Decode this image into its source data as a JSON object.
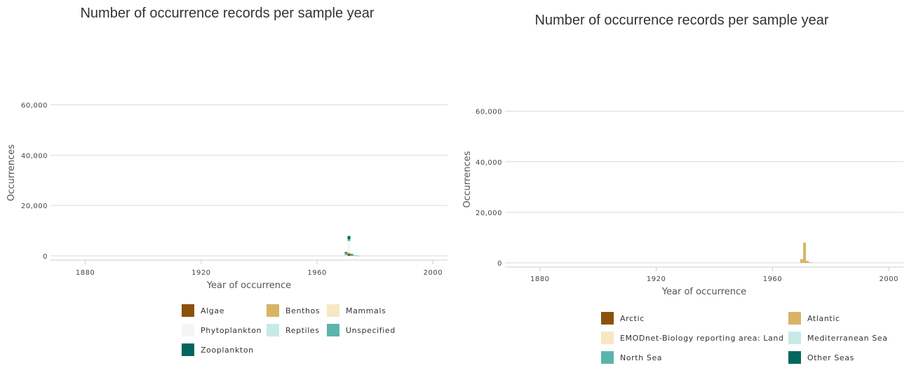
{
  "chart_data": [
    {
      "type": "bar",
      "stacked": true,
      "title": "Number of occurrence records per sample year",
      "xlabel": "Year of occurrence",
      "ylabel": "Occurrences",
      "xlim": [
        1868,
        2005
      ],
      "ylim": [
        0,
        66000
      ],
      "xticks": [
        1880,
        1920,
        1960,
        2000
      ],
      "yticks": [
        0,
        20000,
        40000,
        60000
      ],
      "ytick_labels": [
        "0",
        "20,000",
        "40,000",
        "60,000"
      ],
      "grid": true,
      "legend_position": "bottom",
      "x": [
        1970,
        1971,
        1972,
        1973,
        1974
      ],
      "series": [
        {
          "name": "Algae",
          "color": "#8c510a",
          "values": [
            0,
            900,
            0,
            0,
            0
          ]
        },
        {
          "name": "Benthos",
          "color": "#d8b365",
          "values": [
            0,
            400,
            0,
            0,
            0
          ]
        },
        {
          "name": "Mammals",
          "color": "#f6e8c3",
          "values": [
            0,
            100,
            0,
            0,
            0
          ]
        },
        {
          "name": "Phytoplankton",
          "color": "#f5f5f5",
          "values": [
            300,
            4500,
            0,
            0,
            0
          ]
        },
        {
          "name": "Reptiles",
          "color": "#c7eae5",
          "values": [
            0,
            0,
            0,
            0,
            0
          ]
        },
        {
          "name": "Unspecified",
          "color": "#5ab4ac",
          "values": [
            800,
            700,
            400,
            200,
            100
          ]
        },
        {
          "name": "Zooplankton",
          "color": "#01665e",
          "values": [
            400,
            1300,
            300,
            0,
            0
          ]
        }
      ]
    },
    {
      "type": "bar",
      "stacked": true,
      "title": "Number of occurrence records per sample year",
      "xlabel": "Year of occurrence",
      "ylabel": "Occurrences",
      "xlim": [
        1868,
        2005
      ],
      "ylim": [
        0,
        66000
      ],
      "xticks": [
        1880,
        1920,
        1960,
        2000
      ],
      "yticks": [
        0,
        20000,
        40000,
        60000
      ],
      "ytick_labels": [
        "0",
        "20,000",
        "40,000",
        "60,000"
      ],
      "grid": true,
      "legend_position": "bottom",
      "x": [
        1970,
        1971,
        1972,
        1973
      ],
      "series": [
        {
          "name": "Arctic",
          "color": "#8c510a",
          "values": [
            0,
            0,
            0,
            0
          ]
        },
        {
          "name": "Atlantic",
          "color": "#d8b365",
          "values": [
            1500,
            8000,
            800,
            200
          ]
        },
        {
          "name": "EMODnet-Biology reporting area: Land",
          "color": "#f6e8c3",
          "values": [
            0,
            0,
            0,
            0
          ]
        },
        {
          "name": "Mediterranean Sea",
          "color": "#c7eae5",
          "values": [
            0,
            0,
            0,
            0
          ]
        },
        {
          "name": "North Sea",
          "color": "#5ab4ac",
          "values": [
            0,
            0,
            0,
            0
          ]
        },
        {
          "name": "Other Seas",
          "color": "#01665e",
          "values": [
            0,
            0,
            0,
            0
          ]
        }
      ]
    }
  ]
}
